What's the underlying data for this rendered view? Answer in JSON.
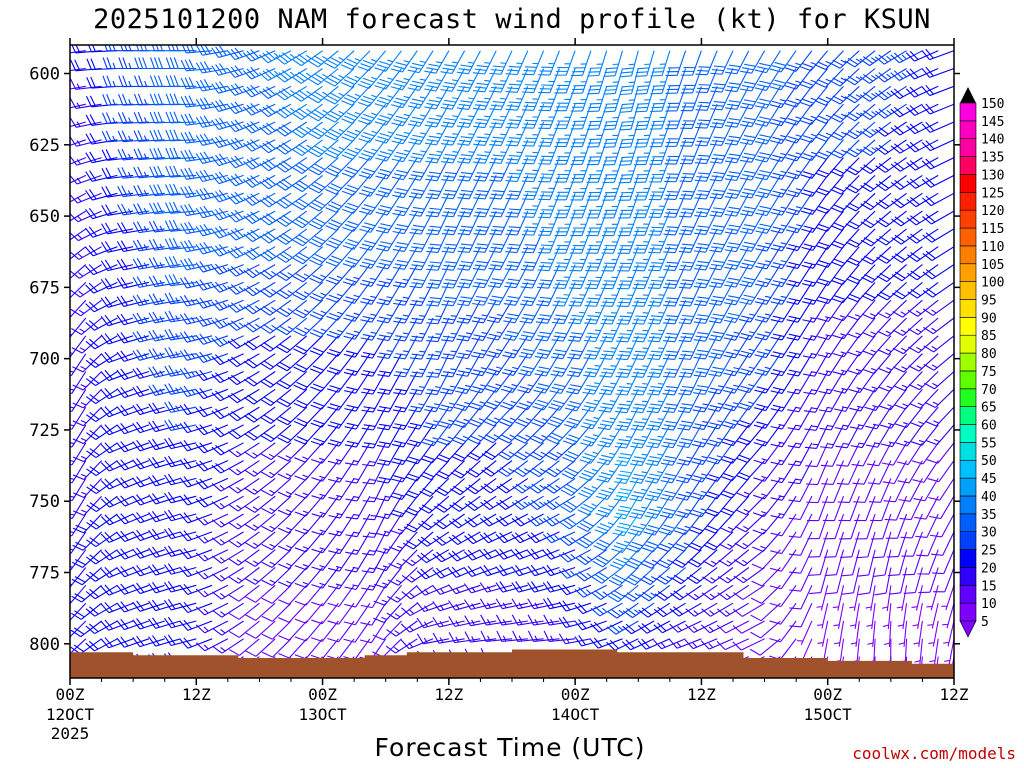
{
  "chart_data": {
    "type": "wind_profile",
    "title": "2025101200 NAM forecast wind profile (kt) for KSUN",
    "xlabel": "Forecast Time (UTC)",
    "ylabel": "",
    "y_axis": {
      "ticks": [
        600,
        625,
        650,
        675,
        700,
        725,
        750,
        775,
        800
      ],
      "range": [
        590,
        812
      ],
      "inverted": true
    },
    "x_axis": {
      "range_hours": [
        0,
        84
      ],
      "ticks": [
        {
          "hour": 0,
          "label": "00Z",
          "sub": "12OCT",
          "sub2": "2025"
        },
        {
          "hour": 12,
          "label": "12Z",
          "sub": "",
          "sub2": ""
        },
        {
          "hour": 24,
          "label": "00Z",
          "sub": "13OCT",
          "sub2": ""
        },
        {
          "hour": 36,
          "label": "12Z",
          "sub": "",
          "sub2": ""
        },
        {
          "hour": 48,
          "label": "00Z",
          "sub": "14OCT",
          "sub2": ""
        },
        {
          "hour": 60,
          "label": "12Z",
          "sub": "",
          "sub2": ""
        },
        {
          "hour": 72,
          "label": "00Z",
          "sub": "15OCT",
          "sub2": ""
        },
        {
          "hour": 84,
          "label": "12Z",
          "sub": "",
          "sub2": ""
        }
      ]
    },
    "colorbar": {
      "levels": [
        5,
        10,
        15,
        20,
        25,
        30,
        35,
        40,
        45,
        50,
        55,
        60,
        65,
        70,
        75,
        80,
        85,
        90,
        95,
        100,
        105,
        110,
        115,
        120,
        125,
        130,
        135,
        140,
        145,
        150
      ],
      "colors": [
        "#8000ff",
        "#6000ff",
        "#3000ff",
        "#0000ff",
        "#0040ff",
        "#0060ff",
        "#0080ff",
        "#00a0ff",
        "#00c0ff",
        "#00e0e0",
        "#00ffc0",
        "#00ff80",
        "#20ff20",
        "#60ff00",
        "#a0ff00",
        "#e0ff00",
        "#ffff00",
        "#ffe000",
        "#ffc000",
        "#ffa000",
        "#ff8000",
        "#ff6000",
        "#ff4000",
        "#ff2000",
        "#ff0000",
        "#ff0060",
        "#ff00a0",
        "#ff00c0",
        "#ff00e0",
        "#ff40ff"
      ]
    },
    "terrain_color": "#a0522d",
    "terrain_pressure": [
      {
        "hour": 0,
        "p": 803
      },
      {
        "hour": 6,
        "p": 804
      },
      {
        "hour": 12,
        "p": 804
      },
      {
        "hour": 16,
        "p": 805
      },
      {
        "hour": 24,
        "p": 805
      },
      {
        "hour": 28,
        "p": 804
      },
      {
        "hour": 32,
        "p": 803
      },
      {
        "hour": 36,
        "p": 803
      },
      {
        "hour": 42,
        "p": 802
      },
      {
        "hour": 48,
        "p": 802
      },
      {
        "hour": 52,
        "p": 803
      },
      {
        "hour": 60,
        "p": 803
      },
      {
        "hour": 64,
        "p": 805
      },
      {
        "hour": 68,
        "p": 805
      },
      {
        "hour": 72,
        "p": 806
      },
      {
        "hour": 76,
        "p": 806
      },
      {
        "hour": 80,
        "p": 807
      },
      {
        "hour": 84,
        "p": 807
      }
    ],
    "wind_profile": [
      {
        "hour": 0,
        "levels": [
          [
            600,
            10,
            260
          ],
          [
            650,
            10,
            230
          ],
          [
            700,
            10,
            200
          ],
          [
            750,
            15,
            200
          ],
          [
            800,
            15,
            220
          ]
        ]
      },
      {
        "hour": 6,
        "levels": [
          [
            600,
            25,
            270
          ],
          [
            650,
            20,
            260
          ],
          [
            700,
            20,
            250
          ],
          [
            750,
            20,
            245
          ],
          [
            800,
            20,
            250
          ]
        ]
      },
      {
        "hour": 12,
        "levels": [
          [
            600,
            30,
            270
          ],
          [
            650,
            30,
            265
          ],
          [
            700,
            25,
            260
          ],
          [
            750,
            20,
            255
          ],
          [
            800,
            20,
            255
          ]
        ]
      },
      {
        "hour": 18,
        "levels": [
          [
            600,
            30,
            250
          ],
          [
            650,
            30,
            245
          ],
          [
            700,
            20,
            240
          ],
          [
            750,
            15,
            235
          ],
          [
            800,
            10,
            230
          ]
        ]
      },
      {
        "hour": 24,
        "levels": [
          [
            600,
            35,
            235
          ],
          [
            650,
            30,
            230
          ],
          [
            700,
            20,
            225
          ],
          [
            750,
            15,
            220
          ],
          [
            800,
            10,
            220
          ]
        ]
      },
      {
        "hour": 30,
        "levels": [
          [
            600,
            35,
            220
          ],
          [
            650,
            30,
            215
          ],
          [
            700,
            20,
            210
          ],
          [
            750,
            15,
            205
          ],
          [
            800,
            10,
            215
          ]
        ]
      },
      {
        "hour": 36,
        "levels": [
          [
            600,
            35,
            210
          ],
          [
            650,
            30,
            205
          ],
          [
            700,
            25,
            205
          ],
          [
            750,
            20,
            230
          ],
          [
            800,
            15,
            260
          ]
        ]
      },
      {
        "hour": 42,
        "levels": [
          [
            600,
            35,
            205
          ],
          [
            650,
            30,
            205
          ],
          [
            700,
            25,
            215
          ],
          [
            750,
            20,
            240
          ],
          [
            800,
            15,
            265
          ]
        ]
      },
      {
        "hour": 48,
        "levels": [
          [
            600,
            35,
            200
          ],
          [
            650,
            35,
            200
          ],
          [
            700,
            30,
            210
          ],
          [
            750,
            25,
            240
          ],
          [
            800,
            15,
            265
          ]
        ]
      },
      {
        "hour": 54,
        "levels": [
          [
            600,
            35,
            195
          ],
          [
            650,
            35,
            200
          ],
          [
            700,
            35,
            205
          ],
          [
            750,
            40,
            210
          ],
          [
            800,
            20,
            245
          ]
        ]
      },
      {
        "hour": 60,
        "levels": [
          [
            600,
            30,
            200
          ],
          [
            650,
            30,
            205
          ],
          [
            700,
            30,
            205
          ],
          [
            750,
            25,
            215
          ],
          [
            800,
            15,
            250
          ]
        ]
      },
      {
        "hour": 66,
        "levels": [
          [
            600,
            30,
            210
          ],
          [
            650,
            30,
            210
          ],
          [
            700,
            25,
            215
          ],
          [
            750,
            15,
            225
          ],
          [
            800,
            10,
            245
          ]
        ]
      },
      {
        "hour": 72,
        "levels": [
          [
            600,
            25,
            220
          ],
          [
            650,
            20,
            215
          ],
          [
            700,
            15,
            210
          ],
          [
            750,
            10,
            200
          ],
          [
            800,
            5,
            190
          ]
        ]
      },
      {
        "hour": 78,
        "levels": [
          [
            600,
            25,
            235
          ],
          [
            650,
            20,
            230
          ],
          [
            700,
            15,
            220
          ],
          [
            750,
            10,
            200
          ],
          [
            800,
            5,
            180
          ]
        ]
      },
      {
        "hour": 84,
        "levels": [
          [
            600,
            20,
            250
          ],
          [
            650,
            20,
            240
          ],
          [
            700,
            15,
            230
          ],
          [
            750,
            10,
            210
          ],
          [
            800,
            5,
            190
          ]
        ]
      }
    ]
  },
  "credit": "coolwx.com/models"
}
